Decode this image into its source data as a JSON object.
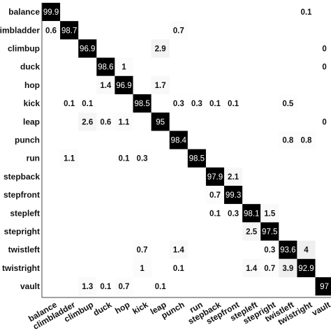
{
  "chart_data": {
    "type": "heatmap",
    "x_labels": [
      "balance",
      "climbladder",
      "climbup",
      "duck",
      "hop",
      "kick",
      "leap",
      "punch",
      "run",
      "stepback",
      "stepfront",
      "stepleft",
      "stepright",
      "twistleft",
      "twistright",
      "vault"
    ],
    "y_labels": [
      "balance",
      "climbladder",
      "climbup",
      "duck",
      "hop",
      "kick",
      "leap",
      "punch",
      "run",
      "stepback",
      "stepfront",
      "stepleft",
      "stepright",
      "twistleft",
      "twistright",
      "vault"
    ],
    "cells": [
      {
        "row": 0,
        "col": 0,
        "value": 99.9,
        "label": "99.9"
      },
      {
        "row": 0,
        "col": 14,
        "value": 0.1,
        "label": "0.1"
      },
      {
        "row": 1,
        "col": 0,
        "value": 0.6,
        "label": "0.6"
      },
      {
        "row": 1,
        "col": 1,
        "value": 98.7,
        "label": "98.7"
      },
      {
        "row": 1,
        "col": 7,
        "value": 0.7,
        "label": "0.7"
      },
      {
        "row": 2,
        "col": 2,
        "value": 96.9,
        "label": "96.9"
      },
      {
        "row": 2,
        "col": 6,
        "value": 2.9,
        "label": "2.9"
      },
      {
        "row": 2,
        "col": 15,
        "value": 0,
        "label": "0"
      },
      {
        "row": 3,
        "col": 3,
        "value": 98.6,
        "label": "98.6"
      },
      {
        "row": 3,
        "col": 4,
        "value": 1,
        "label": "1"
      },
      {
        "row": 3,
        "col": 15,
        "value": 0,
        "label": "0"
      },
      {
        "row": 4,
        "col": 3,
        "value": 1.4,
        "label": "1.4"
      },
      {
        "row": 4,
        "col": 4,
        "value": 96.9,
        "label": "96.9"
      },
      {
        "row": 4,
        "col": 6,
        "value": 1.7,
        "label": "1.7"
      },
      {
        "row": 5,
        "col": 1,
        "value": 0.1,
        "label": "0.1"
      },
      {
        "row": 5,
        "col": 2,
        "value": 0.1,
        "label": "0.1"
      },
      {
        "row": 5,
        "col": 5,
        "value": 98.5,
        "label": "98.5"
      },
      {
        "row": 5,
        "col": 7,
        "value": 0.3,
        "label": "0.3"
      },
      {
        "row": 5,
        "col": 8,
        "value": 0.3,
        "label": "0.3"
      },
      {
        "row": 5,
        "col": 9,
        "value": 0.1,
        "label": "0.1"
      },
      {
        "row": 5,
        "col": 10,
        "value": 0.1,
        "label": "0.1"
      },
      {
        "row": 5,
        "col": 13,
        "value": 0.5,
        "label": "0.5"
      },
      {
        "row": 6,
        "col": 2,
        "value": 2.6,
        "label": "2.6"
      },
      {
        "row": 6,
        "col": 3,
        "value": 0.6,
        "label": "0.6"
      },
      {
        "row": 6,
        "col": 4,
        "value": 1.1,
        "label": "1.1"
      },
      {
        "row": 6,
        "col": 6,
        "value": 95,
        "label": "95"
      },
      {
        "row": 6,
        "col": 15,
        "value": 0,
        "label": "0"
      },
      {
        "row": 7,
        "col": 7,
        "value": 98.4,
        "label": "98.4"
      },
      {
        "row": 7,
        "col": 13,
        "value": 0.8,
        "label": "0.8"
      },
      {
        "row": 7,
        "col": 14,
        "value": 0.8,
        "label": "0.8"
      },
      {
        "row": 8,
        "col": 1,
        "value": 1.1,
        "label": "1.1"
      },
      {
        "row": 8,
        "col": 4,
        "value": 0.1,
        "label": "0.1"
      },
      {
        "row": 8,
        "col": 5,
        "value": 0.3,
        "label": "0.3"
      },
      {
        "row": 8,
        "col": 8,
        "value": 98.5,
        "label": "98.5"
      },
      {
        "row": 9,
        "col": 9,
        "value": 97.9,
        "label": "97.9"
      },
      {
        "row": 9,
        "col": 10,
        "value": 2.1,
        "label": "2.1"
      },
      {
        "row": 10,
        "col": 9,
        "value": 0.7,
        "label": "0.7"
      },
      {
        "row": 10,
        "col": 10,
        "value": 99.3,
        "label": "99.3"
      },
      {
        "row": 11,
        "col": 9,
        "value": 0.1,
        "label": "0.1"
      },
      {
        "row": 11,
        "col": 10,
        "value": 0.3,
        "label": "0.3"
      },
      {
        "row": 11,
        "col": 11,
        "value": 98.1,
        "label": "98.1"
      },
      {
        "row": 11,
        "col": 12,
        "value": 1.5,
        "label": "1.5"
      },
      {
        "row": 12,
        "col": 11,
        "value": 2.5,
        "label": "2.5"
      },
      {
        "row": 12,
        "col": 12,
        "value": 97.5,
        "label": "97.5"
      },
      {
        "row": 13,
        "col": 5,
        "value": 0.7,
        "label": "0.7"
      },
      {
        "row": 13,
        "col": 7,
        "value": 1.4,
        "label": "1.4"
      },
      {
        "row": 13,
        "col": 12,
        "value": 0.3,
        "label": "0.3"
      },
      {
        "row": 13,
        "col": 13,
        "value": 93.6,
        "label": "93.6"
      },
      {
        "row": 13,
        "col": 14,
        "value": 4,
        "label": "4"
      },
      {
        "row": 14,
        "col": 5,
        "value": 1,
        "label": "1"
      },
      {
        "row": 14,
        "col": 7,
        "value": 0.1,
        "label": "0.1"
      },
      {
        "row": 14,
        "col": 11,
        "value": 1.4,
        "label": "1.4"
      },
      {
        "row": 14,
        "col": 12,
        "value": 0.7,
        "label": "0.7"
      },
      {
        "row": 14,
        "col": 13,
        "value": 3.9,
        "label": "3.9"
      },
      {
        "row": 14,
        "col": 14,
        "value": 92.9,
        "label": "92.9"
      },
      {
        "row": 15,
        "col": 2,
        "value": 1.3,
        "label": "1.3"
      },
      {
        "row": 15,
        "col": 3,
        "value": 0.1,
        "label": "0.1"
      },
      {
        "row": 15,
        "col": 4,
        "value": 0.7,
        "label": "0.7"
      },
      {
        "row": 15,
        "col": 6,
        "value": 0.1,
        "label": "0.1"
      },
      {
        "row": 15,
        "col": 15,
        "value": 97,
        "label": "97"
      }
    ],
    "value_range": [
      0,
      100
    ],
    "colormap": "white-to-black",
    "grid": false,
    "legend": "none"
  }
}
